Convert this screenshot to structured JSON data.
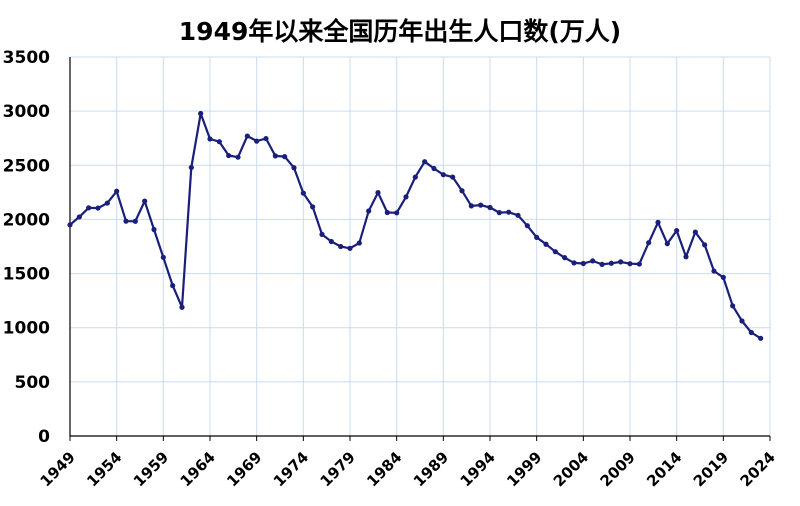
{
  "chart_data": {
    "type": "line",
    "title": "1949年以来全国历年出生人口数(万人)",
    "xlabel": "",
    "ylabel": "",
    "ylim": [
      0,
      3500
    ],
    "xlim": [
      1949,
      2024
    ],
    "y_ticks": [
      0,
      500,
      1000,
      1500,
      2000,
      2500,
      3000,
      3500
    ],
    "x_ticks": [
      "1949",
      "1954",
      "1959",
      "1964",
      "1969",
      "1974",
      "1979",
      "1984",
      "1989",
      "1994",
      "1999",
      "2004",
      "2009",
      "2014",
      "2019",
      "2024"
    ],
    "grid": true,
    "line_color": "#1a1f7a",
    "grid_color": "#c9dcf0",
    "x": [
      1949,
      1950,
      1951,
      1952,
      1953,
      1954,
      1955,
      1956,
      1957,
      1958,
      1959,
      1960,
      1961,
      1962,
      1963,
      1964,
      1965,
      1966,
      1967,
      1968,
      1969,
      1970,
      1971,
      1972,
      1973,
      1974,
      1975,
      1976,
      1977,
      1978,
      1979,
      1980,
      1981,
      1982,
      1983,
      1984,
      1985,
      1986,
      1987,
      1988,
      1989,
      1990,
      1991,
      1992,
      1993,
      1994,
      1995,
      1996,
      1997,
      1998,
      1999,
      2000,
      2001,
      2002,
      2003,
      2004,
      2005,
      2006,
      2007,
      2008,
      2009,
      2010,
      2011,
      2012,
      2013,
      2014,
      2015,
      2016,
      2017,
      2018,
      2019,
      2020,
      2021,
      2022,
      2023
    ],
    "values": [
      1950,
      2023,
      2107,
      2105,
      2151,
      2260,
      1984,
      1983,
      2169,
      1907,
      1650,
      1389,
      1189,
      2480,
      2978,
      2743,
      2718,
      2590,
      2575,
      2770,
      2723,
      2747,
      2587,
      2580,
      2477,
      2243,
      2116,
      1862,
      1796,
      1750,
      1733,
      1782,
      2078,
      2248,
      2064,
      2061,
      2208,
      2391,
      2533,
      2470,
      2413,
      2391,
      2265,
      2125,
      2132,
      2110,
      2063,
      2067,
      2038,
      1942,
      1834,
      1771,
      1702,
      1647,
      1599,
      1593,
      1617,
      1585,
      1595,
      1608,
      1591,
      1588,
      1785,
      1973,
      1776,
      1897,
      1655,
      1883,
      1765,
      1523,
      1465,
      1202,
      1062,
      956,
      902
    ]
  }
}
